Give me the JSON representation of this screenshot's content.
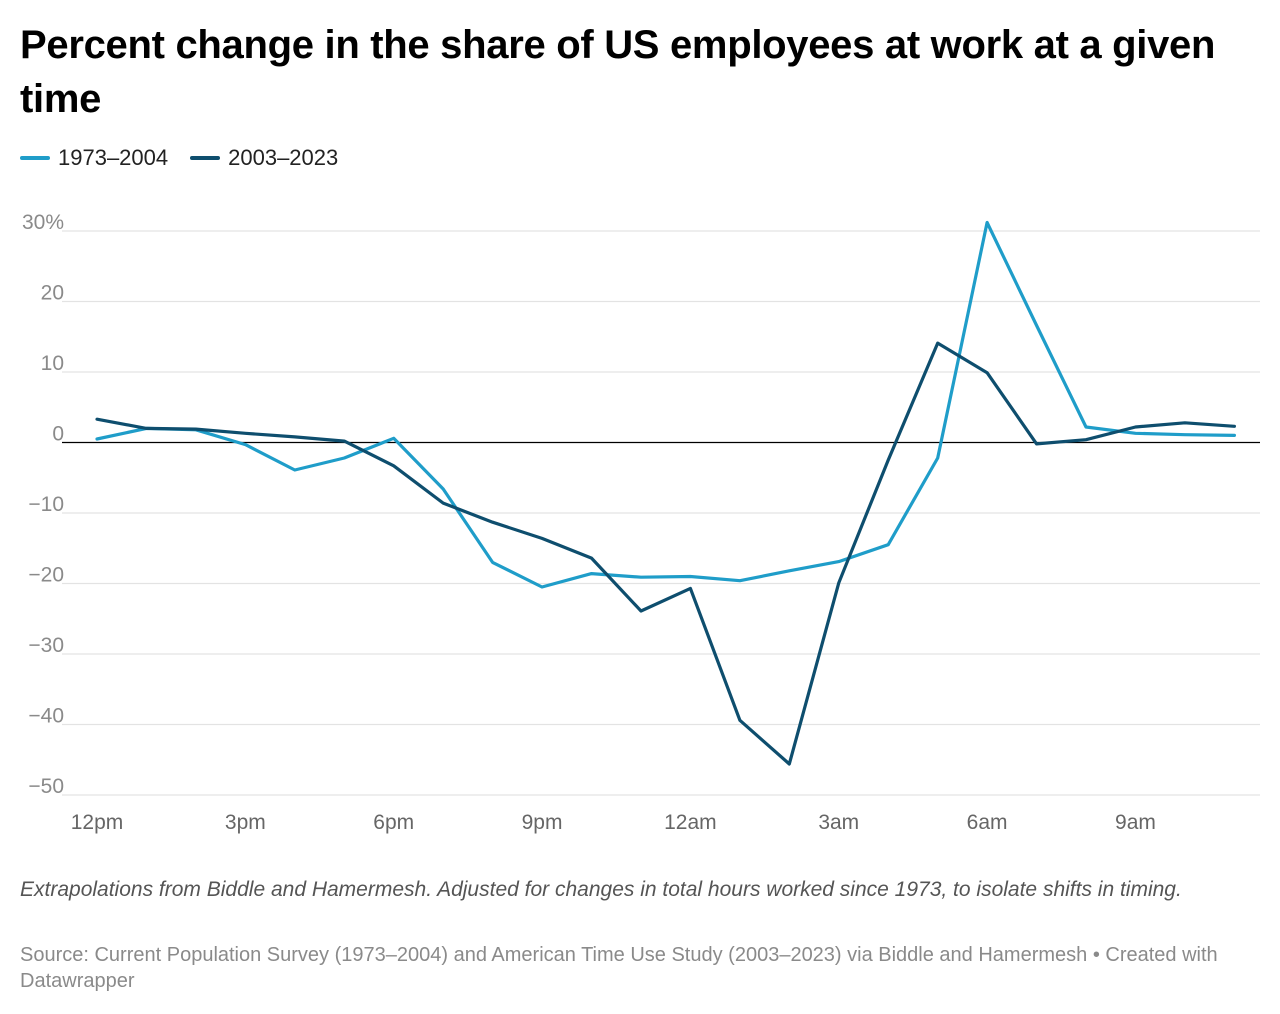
{
  "chart_data": {
    "type": "line",
    "title": "Percent change in the share of US employees at work at a given time",
    "xlabel": "",
    "ylabel": "",
    "ylim": [
      -50,
      30
    ],
    "y_ticks": [
      {
        "value": 30,
        "label": "30%"
      },
      {
        "value": 20,
        "label": "20"
      },
      {
        "value": 10,
        "label": "10"
      },
      {
        "value": 0,
        "label": "0"
      },
      {
        "value": -10,
        "label": "−10"
      },
      {
        "value": -20,
        "label": "−20"
      },
      {
        "value": -30,
        "label": "−30"
      },
      {
        "value": -40,
        "label": "−40"
      },
      {
        "value": -50,
        "label": "−50"
      }
    ],
    "x_hours": [
      0,
      1,
      2,
      3,
      4,
      5,
      6,
      7,
      8,
      9,
      10,
      11,
      12,
      13,
      14,
      15,
      16,
      17,
      18,
      19,
      20,
      21,
      22,
      23
    ],
    "x_ticks": [
      {
        "hour": 0,
        "label": "12pm"
      },
      {
        "hour": 3,
        "label": "3pm"
      },
      {
        "hour": 6,
        "label": "6pm"
      },
      {
        "hour": 9,
        "label": "9pm"
      },
      {
        "hour": 12,
        "label": "12am"
      },
      {
        "hour": 15,
        "label": "3am"
      },
      {
        "hour": 18,
        "label": "6am"
      },
      {
        "hour": 21,
        "label": "9am"
      }
    ],
    "series": [
      {
        "name": "1973–2004",
        "color": "#1f9dc9",
        "values": [
          0.5,
          2.0,
          1.8,
          -0.3,
          -3.9,
          -2.2,
          0.6,
          -6.6,
          -17.0,
          -20.5,
          -18.6,
          -19.1,
          -19.0,
          -19.6,
          -18.2,
          -16.9,
          -14.5,
          -2.2,
          31.2,
          16.6,
          2.2,
          1.3,
          1.1,
          1.0
        ]
      },
      {
        "name": "2003–2023",
        "color": "#0e4e6e",
        "values": [
          3.3,
          2.0,
          1.9,
          1.3,
          0.8,
          0.2,
          -3.3,
          -8.6,
          -11.3,
          -13.6,
          -16.4,
          -23.9,
          -20.7,
          -39.4,
          -45.6,
          -19.9,
          -2.5,
          14.1,
          9.9,
          -0.2,
          0.4,
          2.2,
          2.8,
          2.3
        ]
      }
    ]
  },
  "legend": {
    "items": [
      {
        "label": "1973–2004",
        "color": "#1f9dc9"
      },
      {
        "label": "2003–2023",
        "color": "#0e4e6e"
      }
    ]
  },
  "notes": "Extrapolations from Biddle and Hamermesh. Adjusted for changes in total hours worked since 1973, to isolate shifts in timing.",
  "source": "Source: Current Population Survey (1973–2004) and American Time Use Study (2003–2023) via Biddle and Hamermesh • Created with Datawrapper"
}
